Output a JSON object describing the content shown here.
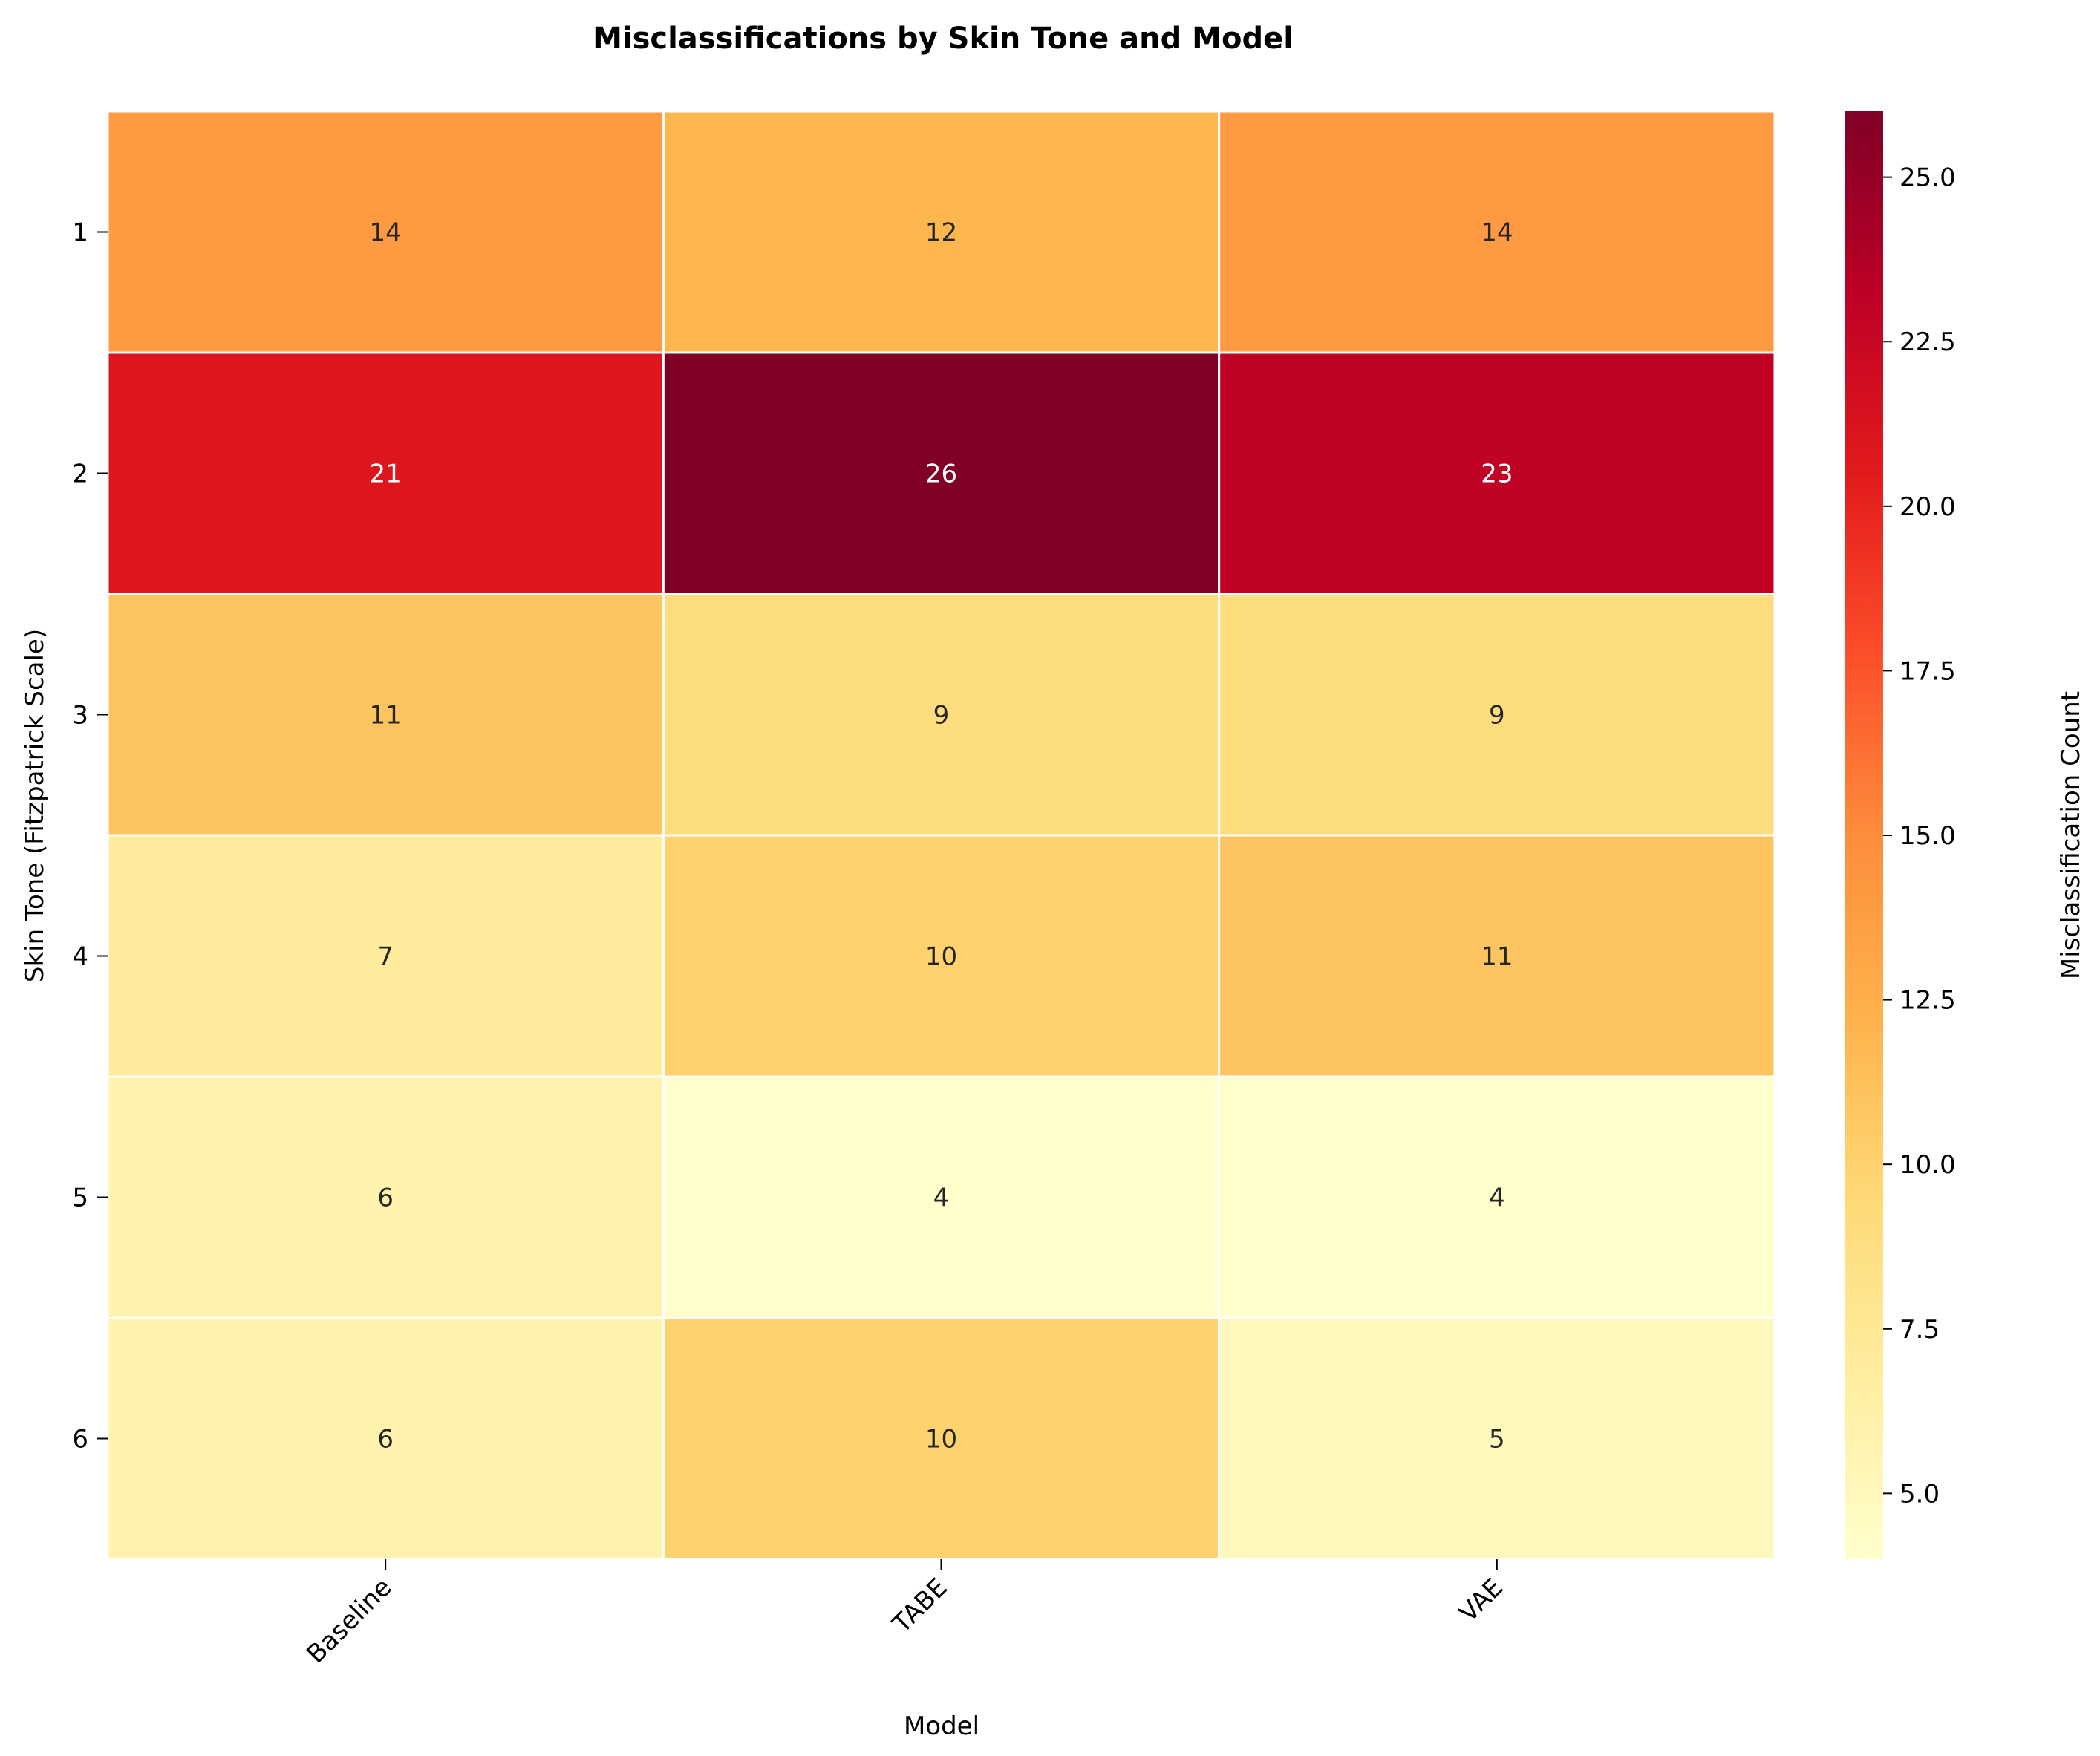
{
  "chart_data": {
    "type": "heatmap",
    "title": "Misclassifications by Skin Tone and Model",
    "xlabel": "Model",
    "ylabel": "Skin Tone (Fitzpatrick Scale)",
    "x_categories": [
      "Baseline",
      "TABE",
      "VAE"
    ],
    "y_categories": [
      "1",
      "2",
      "3",
      "4",
      "5",
      "6"
    ],
    "values": [
      [
        14,
        12,
        14
      ],
      [
        21,
        26,
        23
      ],
      [
        11,
        9,
        9
      ],
      [
        7,
        10,
        11
      ],
      [
        6,
        4,
        4
      ],
      [
        6,
        10,
        5
      ]
    ],
    "colorbar": {
      "label": "Misclassification Count",
      "min": 4,
      "max": 26,
      "ticks": [
        "5.0",
        "7.5",
        "10.0",
        "12.5",
        "15.0",
        "17.5",
        "20.0",
        "22.5",
        "25.0"
      ]
    },
    "colormap": "YlOrRd",
    "colormap_stops": [
      "#ffffcc",
      "#ffeda0",
      "#fed976",
      "#feb24c",
      "#fd8d3c",
      "#fc4e2a",
      "#e31a1c",
      "#bd0026",
      "#800026"
    ],
    "grid": false,
    "cell_border_color": "#ffffff"
  }
}
